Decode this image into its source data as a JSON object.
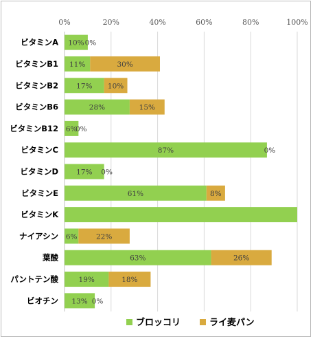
{
  "chart_data": {
    "type": "bar",
    "orientation": "horizontal",
    "stacked": true,
    "title": "",
    "xlabel": "",
    "ylabel": "",
    "xlim": [
      0,
      100
    ],
    "x_ticks": [
      "0%",
      "20%",
      "40%",
      "60%",
      "80%",
      "100%"
    ],
    "grid": true,
    "legend_position": "bottom",
    "categories": [
      "ビタミンA",
      "ビタミンB1",
      "ビタミンB2",
      "ビタミンB6",
      "ビタミンB12",
      "ビタミンC",
      "ビタミンD",
      "ビタミンE",
      "ビタミンK",
      "ナイアシン",
      "葉酸",
      "パントテン酸",
      "ビオチン"
    ],
    "series": [
      {
        "name": "ブロッコリ",
        "color": "#92d050",
        "values": [
          10,
          11,
          17,
          28,
          6,
          87,
          17,
          61,
          100,
          6,
          63,
          19,
          13
        ],
        "labels": [
          "10%",
          "11%",
          "17%",
          "28%",
          "6%",
          "87%",
          "17%",
          "61%",
          "",
          "6%",
          "63%",
          "19%",
          "13%"
        ]
      },
      {
        "name": "ライ麦パン",
        "color": "#d9aa3f",
        "values": [
          0,
          30,
          10,
          15,
          0,
          0,
          0,
          8,
          0,
          22,
          26,
          18,
          0
        ],
        "labels": [
          "0%",
          "30%",
          "10%",
          "15%",
          "0%",
          "0%",
          "0%",
          "8%",
          "",
          "22%",
          "26%",
          "18%",
          "0%"
        ]
      }
    ]
  }
}
